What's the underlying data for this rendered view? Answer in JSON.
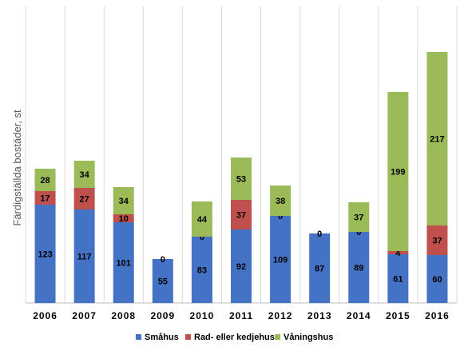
{
  "chart_data": {
    "type": "bar",
    "stacked": true,
    "title": "",
    "xlabel": "",
    "ylabel": "Färdigställda bostäder, st",
    "categories": [
      "2006",
      "2007",
      "2008",
      "2009",
      "2010",
      "2011",
      "2012",
      "2013",
      "2014",
      "2015",
      "2016"
    ],
    "series": [
      {
        "name": "Småhus",
        "color": "#4472c4",
        "values": [
          123,
          117,
          101,
          55,
          83,
          92,
          109,
          87,
          89,
          61,
          60
        ]
      },
      {
        "name": "Rad- eller kedjehus",
        "color": "#c0504d",
        "values": [
          17,
          27,
          10,
          0,
          0,
          37,
          0,
          0,
          0,
          4,
          37
        ]
      },
      {
        "name": "Våningshus",
        "color": "#9bbb59",
        "values": [
          28,
          34,
          34,
          0,
          44,
          53,
          38,
          0,
          37,
          199,
          217
        ]
      }
    ],
    "ylim": [
      0,
      350
    ],
    "grid": "vertical",
    "legend": "bottom"
  }
}
